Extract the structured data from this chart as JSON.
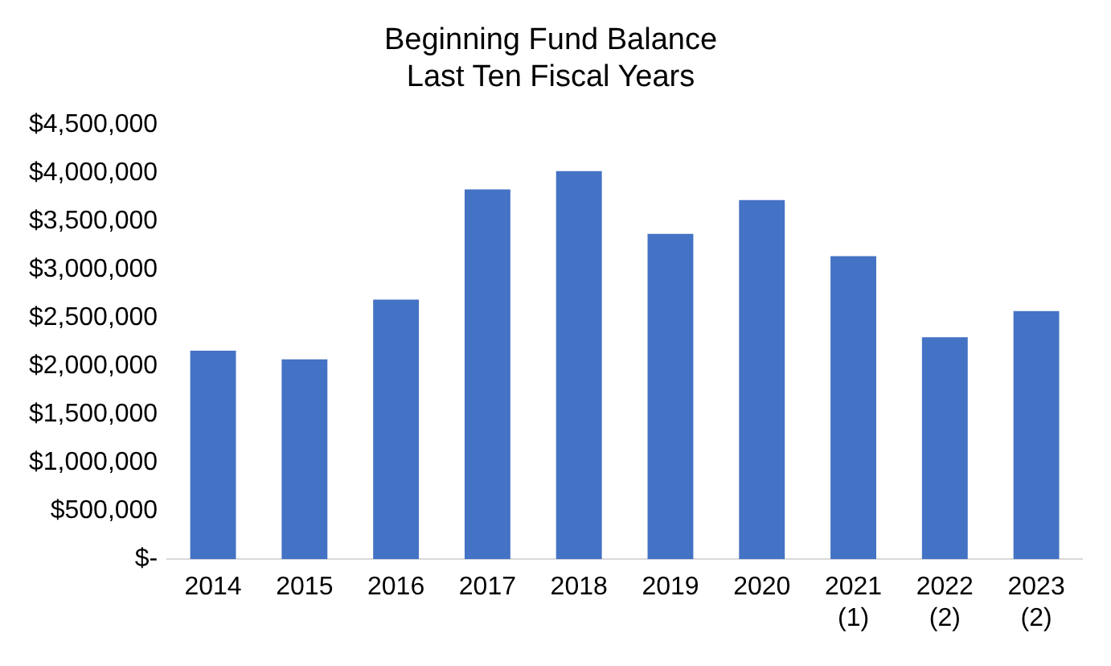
{
  "chart_data": {
    "type": "bar",
    "title": "Beginning Fund Balance",
    "subtitle": "Last Ten Fiscal Years",
    "categories": [
      "2014",
      "2015",
      "2016",
      "2017",
      "2018",
      "2019",
      "2020",
      "2021\n(1)",
      "2022\n(2)",
      "2023\n(2)"
    ],
    "values": [
      2160000,
      2070000,
      2690000,
      3830000,
      4020000,
      3370000,
      3720000,
      3140000,
      2300000,
      2570000
    ],
    "color": "#4472c4",
    "ylim": [
      0,
      4500000
    ],
    "yticks": [
      {
        "value": 0,
        "label": "$-"
      },
      {
        "value": 500000,
        "label": "$500,000"
      },
      {
        "value": 1000000,
        "label": "$1,000,000"
      },
      {
        "value": 1500000,
        "label": "$1,500,000"
      },
      {
        "value": 2000000,
        "label": "$2,000,000"
      },
      {
        "value": 2500000,
        "label": "$2,500,000"
      },
      {
        "value": 3000000,
        "label": "$3,000,000"
      },
      {
        "value": 3500000,
        "label": "$3,500,000"
      },
      {
        "value": 4000000,
        "label": "$4,000,000"
      },
      {
        "value": 4500000,
        "label": "$4,500,000"
      }
    ],
    "grid": false,
    "legend": false
  }
}
